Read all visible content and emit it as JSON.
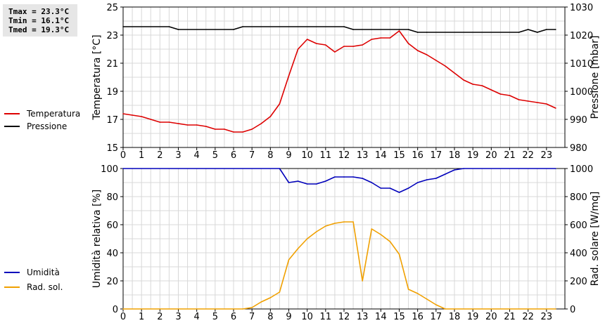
{
  "stats": {
    "tmax": "Tmax = 23.3°C",
    "tmin": "Tmin = 16.1°C",
    "tmed": "Tmed = 19.3°C"
  },
  "chart_data": [
    {
      "type": "line",
      "title": "",
      "xlabel": "",
      "xlim": [
        0,
        24
      ],
      "xticks": [
        0,
        1,
        2,
        3,
        4,
        5,
        6,
        7,
        8,
        9,
        10,
        11,
        12,
        13,
        14,
        15,
        16,
        17,
        18,
        19,
        20,
        21,
        22,
        23
      ],
      "ylabel": "Temperatura [°C]",
      "ylim": [
        15,
        25
      ],
      "yticks": [
        15,
        17,
        19,
        21,
        23,
        25
      ],
      "y2label": "Pressione [mbar]",
      "y2lim": [
        980,
        1030
      ],
      "y2ticks": [
        980,
        990,
        1000,
        1010,
        1020,
        1030
      ],
      "grid": true,
      "legend_position": "left",
      "series": [
        {
          "name": "Temperatura",
          "color": "#dd0000",
          "axis": "left",
          "x": [
            0,
            0.5,
            1,
            1.5,
            2,
            2.5,
            3,
            3.5,
            4,
            4.5,
            5,
            5.5,
            6,
            6.5,
            7,
            7.5,
            8,
            8.5,
            9,
            9.5,
            10,
            10.5,
            11,
            11.5,
            12,
            12.5,
            13,
            13.5,
            14,
            14.5,
            15,
            15.5,
            16,
            16.5,
            17,
            17.5,
            18,
            18.5,
            19,
            19.5,
            20,
            20.5,
            21,
            21.5,
            22,
            22.5,
            23,
            23.5
          ],
          "y": [
            17.4,
            17.3,
            17.2,
            17.0,
            16.8,
            16.8,
            16.7,
            16.6,
            16.6,
            16.5,
            16.3,
            16.3,
            16.1,
            16.1,
            16.3,
            16.7,
            17.2,
            18.1,
            20.1,
            22.0,
            22.7,
            22.4,
            22.3,
            21.8,
            22.2,
            22.2,
            22.3,
            22.7,
            22.8,
            22.8,
            23.3,
            22.4,
            21.9,
            21.6,
            21.2,
            20.8,
            20.3,
            19.8,
            19.5,
            19.4,
            19.1,
            18.8,
            18.7,
            18.4,
            18.3,
            18.2,
            18.1,
            17.8
          ]
        },
        {
          "name": "Pressione",
          "color": "#000000",
          "axis": "right",
          "x": [
            0,
            2.5,
            3,
            6,
            6.5,
            12,
            12.5,
            15,
            15.5,
            16,
            16.5,
            21.5,
            22,
            22.5,
            23,
            23.5
          ],
          "y": [
            1023,
            1023,
            1022,
            1022,
            1023,
            1023,
            1022,
            1022,
            1022,
            1021,
            1021,
            1021,
            1022,
            1021,
            1022,
            1022
          ]
        }
      ]
    },
    {
      "type": "line",
      "title": "",
      "xlabel": "",
      "xlim": [
        0,
        24
      ],
      "xticks": [
        0,
        1,
        2,
        3,
        4,
        5,
        6,
        7,
        8,
        9,
        10,
        11,
        12,
        13,
        14,
        15,
        16,
        17,
        18,
        19,
        20,
        21,
        22,
        23
      ],
      "ylabel": "Umidità relativa [%]",
      "ylim": [
        0,
        100
      ],
      "yticks": [
        0,
        20,
        40,
        60,
        80,
        100
      ],
      "y2label": "Rad. solare [W/mq]",
      "y2lim": [
        0,
        1000
      ],
      "y2ticks": [
        0,
        200,
        400,
        600,
        800,
        1000
      ],
      "grid": true,
      "legend_position": "left",
      "series": [
        {
          "name": "Umidità",
          "color": "#0000bb",
          "axis": "left",
          "x": [
            0,
            8.5,
            9,
            9.5,
            10,
            10.5,
            11,
            11.5,
            12,
            12.5,
            13,
            13.5,
            14,
            14.5,
            15,
            15.5,
            16,
            16.5,
            17,
            17.5,
            18,
            18.5,
            23.5
          ],
          "y": [
            100,
            100,
            90,
            91,
            89,
            89,
            91,
            94,
            94,
            94,
            93,
            90,
            86,
            86,
            83,
            86,
            90,
            92,
            93,
            96,
            99,
            100,
            100
          ]
        },
        {
          "name": "Rad. sol.",
          "color": "#f0a000",
          "axis": "right",
          "x": [
            0,
            6.5,
            7,
            7.5,
            8,
            8.5,
            9,
            9.5,
            10,
            10.5,
            11,
            11.5,
            12,
            12.5,
            13,
            13.5,
            14,
            14.5,
            15,
            15.5,
            16,
            16.5,
            17,
            17.5,
            18,
            23.5
          ],
          "y": [
            0,
            0,
            10,
            50,
            80,
            120,
            350,
            430,
            500,
            550,
            590,
            610,
            620,
            620,
            200,
            570,
            530,
            480,
            390,
            140,
            110,
            70,
            30,
            0,
            0,
            0
          ]
        }
      ]
    }
  ]
}
